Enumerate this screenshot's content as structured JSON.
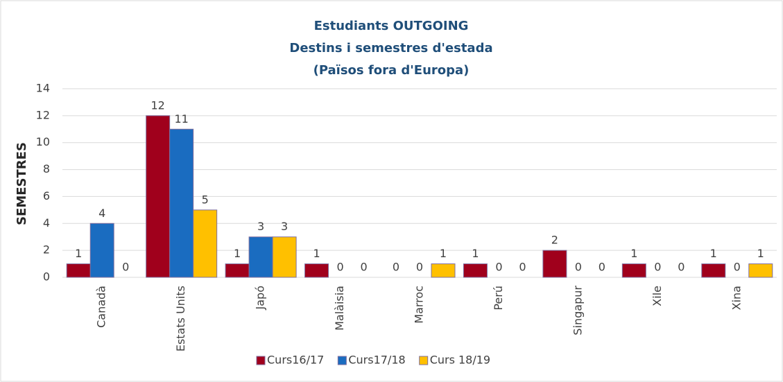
{
  "chart_data": {
    "type": "bar",
    "title": [
      "Estudiants OUTGOING",
      "Destins i semestres d'estada",
      "(Països fora d'Europa)"
    ],
    "y_label": "SEMESTRES",
    "categories": [
      "Canadà",
      "Estats Units",
      "Japó",
      "Malàisia",
      "Marroc",
      "Perú",
      "Singapur",
      "Xile",
      "Xina"
    ],
    "series": [
      {
        "name": "Curs16/17",
        "color": "#a0001c",
        "values": [
          1,
          12,
          1,
          1,
          0,
          1,
          2,
          1,
          1
        ]
      },
      {
        "name": "Curs17/18",
        "color": "#1a6cc0",
        "values": [
          4,
          11,
          3,
          0,
          0,
          0,
          0,
          0,
          0
        ]
      },
      {
        "name": "Curs 18/19",
        "color": "#ffc000",
        "values": [
          0,
          5,
          3,
          0,
          1,
          0,
          0,
          0,
          1
        ]
      }
    ],
    "ylim": [
      0,
      14
    ],
    "yticks": [
      0,
      2,
      4,
      6,
      8,
      10,
      12,
      14
    ],
    "grid": true,
    "legend": "bottom"
  }
}
